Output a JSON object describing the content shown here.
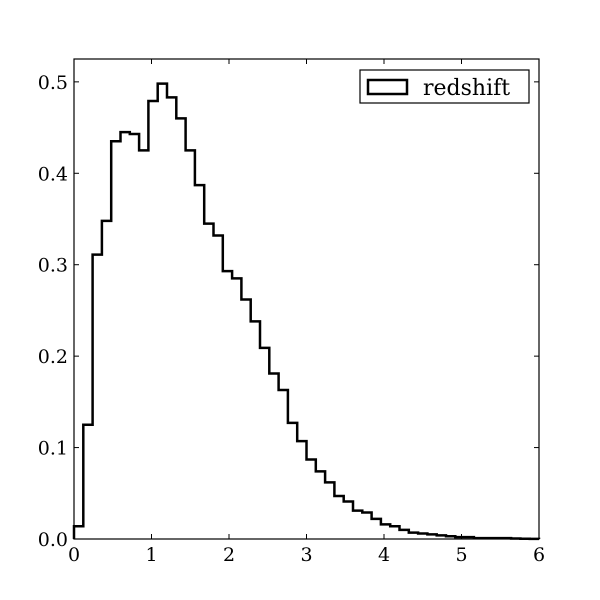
{
  "chart_data": {
    "type": "histogram",
    "title": "",
    "xlabel": "",
    "ylabel": "",
    "xlim": [
      0,
      6
    ],
    "ylim": [
      0,
      0.525
    ],
    "grid": false,
    "legend": {
      "position": "top-right",
      "entries": [
        "redshift"
      ]
    },
    "line_color": "#000000",
    "x_ticks": [
      0,
      1,
      2,
      3,
      4,
      5,
      6
    ],
    "x_tick_labels": [
      "0",
      "1",
      "2",
      "3",
      "4",
      "5",
      "6"
    ],
    "y_ticks": [
      0.0,
      0.1,
      0.2,
      0.3,
      0.4,
      0.5
    ],
    "y_tick_labels": [
      "0.0",
      "0.1",
      "0.2",
      "0.3",
      "0.4",
      "0.5"
    ],
    "series": [
      {
        "name": "redshift",
        "bin_edges": [
          0.0,
          0.12,
          0.24,
          0.36,
          0.48,
          0.6,
          0.72,
          0.84,
          0.96,
          1.08,
          1.2,
          1.32,
          1.44,
          1.56,
          1.68,
          1.8,
          1.92,
          2.04,
          2.16,
          2.28,
          2.4,
          2.52,
          2.64,
          2.76,
          2.88,
          3.0,
          3.12,
          3.24,
          3.36,
          3.48,
          3.6,
          3.72,
          3.84,
          3.96,
          4.08,
          4.2,
          4.32,
          4.44,
          4.56,
          4.68,
          4.8,
          4.92,
          5.04,
          5.16,
          5.28,
          5.4,
          5.52,
          5.64,
          5.76,
          5.88,
          6.0
        ],
        "values": [
          0.014,
          0.125,
          0.311,
          0.348,
          0.435,
          0.445,
          0.443,
          0.425,
          0.479,
          0.498,
          0.483,
          0.46,
          0.425,
          0.387,
          0.345,
          0.332,
          0.293,
          0.285,
          0.262,
          0.238,
          0.209,
          0.181,
          0.163,
          0.127,
          0.107,
          0.087,
          0.074,
          0.062,
          0.047,
          0.041,
          0.031,
          0.029,
          0.022,
          0.016,
          0.014,
          0.01,
          0.007,
          0.006,
          0.005,
          0.004,
          0.003,
          0.002,
          0.002,
          0.001,
          0.001,
          0.001,
          0.001,
          0.0005,
          0.0003,
          0.0002
        ]
      }
    ]
  }
}
